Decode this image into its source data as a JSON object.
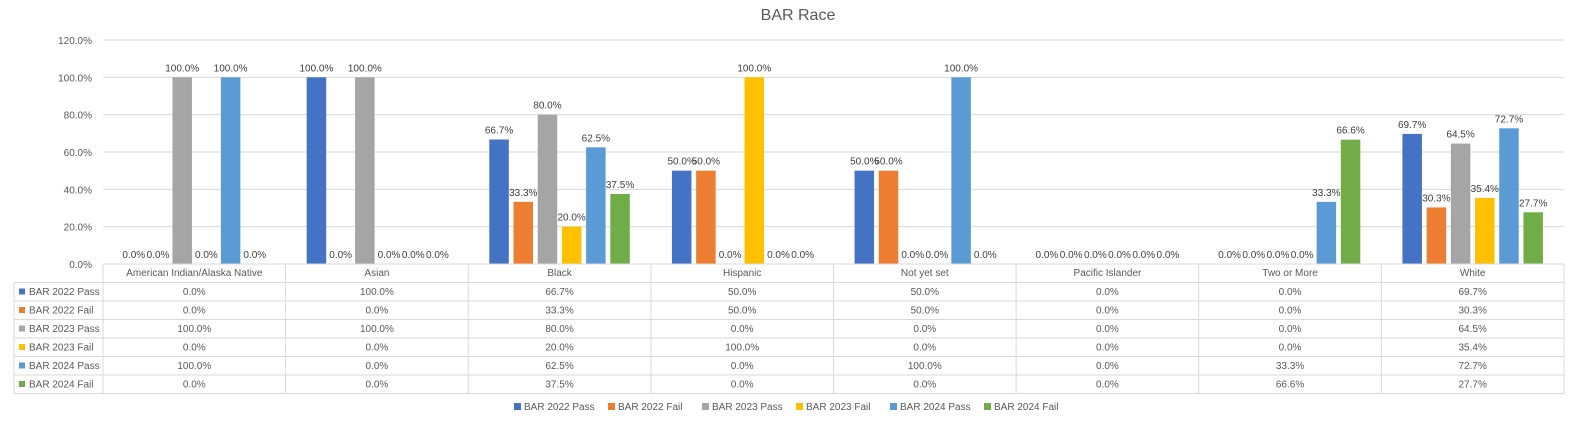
{
  "chart_data": {
    "type": "bar",
    "title": "BAR Race",
    "xlabel": "",
    "ylabel": "",
    "ylim": [
      0,
      120
    ],
    "yticks": [
      "0.0%",
      "20.0%",
      "40.0%",
      "60.0%",
      "80.0%",
      "100.0%",
      "120.0%"
    ],
    "categories": [
      "American Indian/Alaska Native",
      "Asian",
      "Black",
      "Hispanic",
      "Not yet set",
      "Pacific Islander",
      "Two or More",
      "White"
    ],
    "grid": true,
    "legend_position": "bottom",
    "data_table": true,
    "series": [
      {
        "name": "BAR 2022 Pass",
        "color": "#4472C4",
        "values": [
          0.0,
          100.0,
          66.7,
          50.0,
          50.0,
          0.0,
          0.0,
          69.7
        ]
      },
      {
        "name": "BAR 2022 Fail",
        "color": "#ED7D31",
        "values": [
          0.0,
          0.0,
          33.3,
          50.0,
          50.0,
          0.0,
          0.0,
          30.3
        ]
      },
      {
        "name": "BAR 2023 Pass",
        "color": "#A5A5A5",
        "values": [
          100.0,
          100.0,
          80.0,
          0.0,
          0.0,
          0.0,
          0.0,
          64.5
        ]
      },
      {
        "name": "BAR 2023 Fail",
        "color": "#FFC000",
        "values": [
          0.0,
          0.0,
          20.0,
          100.0,
          0.0,
          0.0,
          0.0,
          35.4
        ]
      },
      {
        "name": "BAR 2024 Pass",
        "color": "#5B9BD5",
        "values": [
          100.0,
          0.0,
          62.5,
          0.0,
          100.0,
          0.0,
          33.3,
          72.7
        ]
      },
      {
        "name": "BAR 2024 Fail",
        "color": "#70AD47",
        "values": [
          0.0,
          0.0,
          37.5,
          0.0,
          0.0,
          0.0,
          66.6,
          27.7
        ]
      }
    ]
  }
}
